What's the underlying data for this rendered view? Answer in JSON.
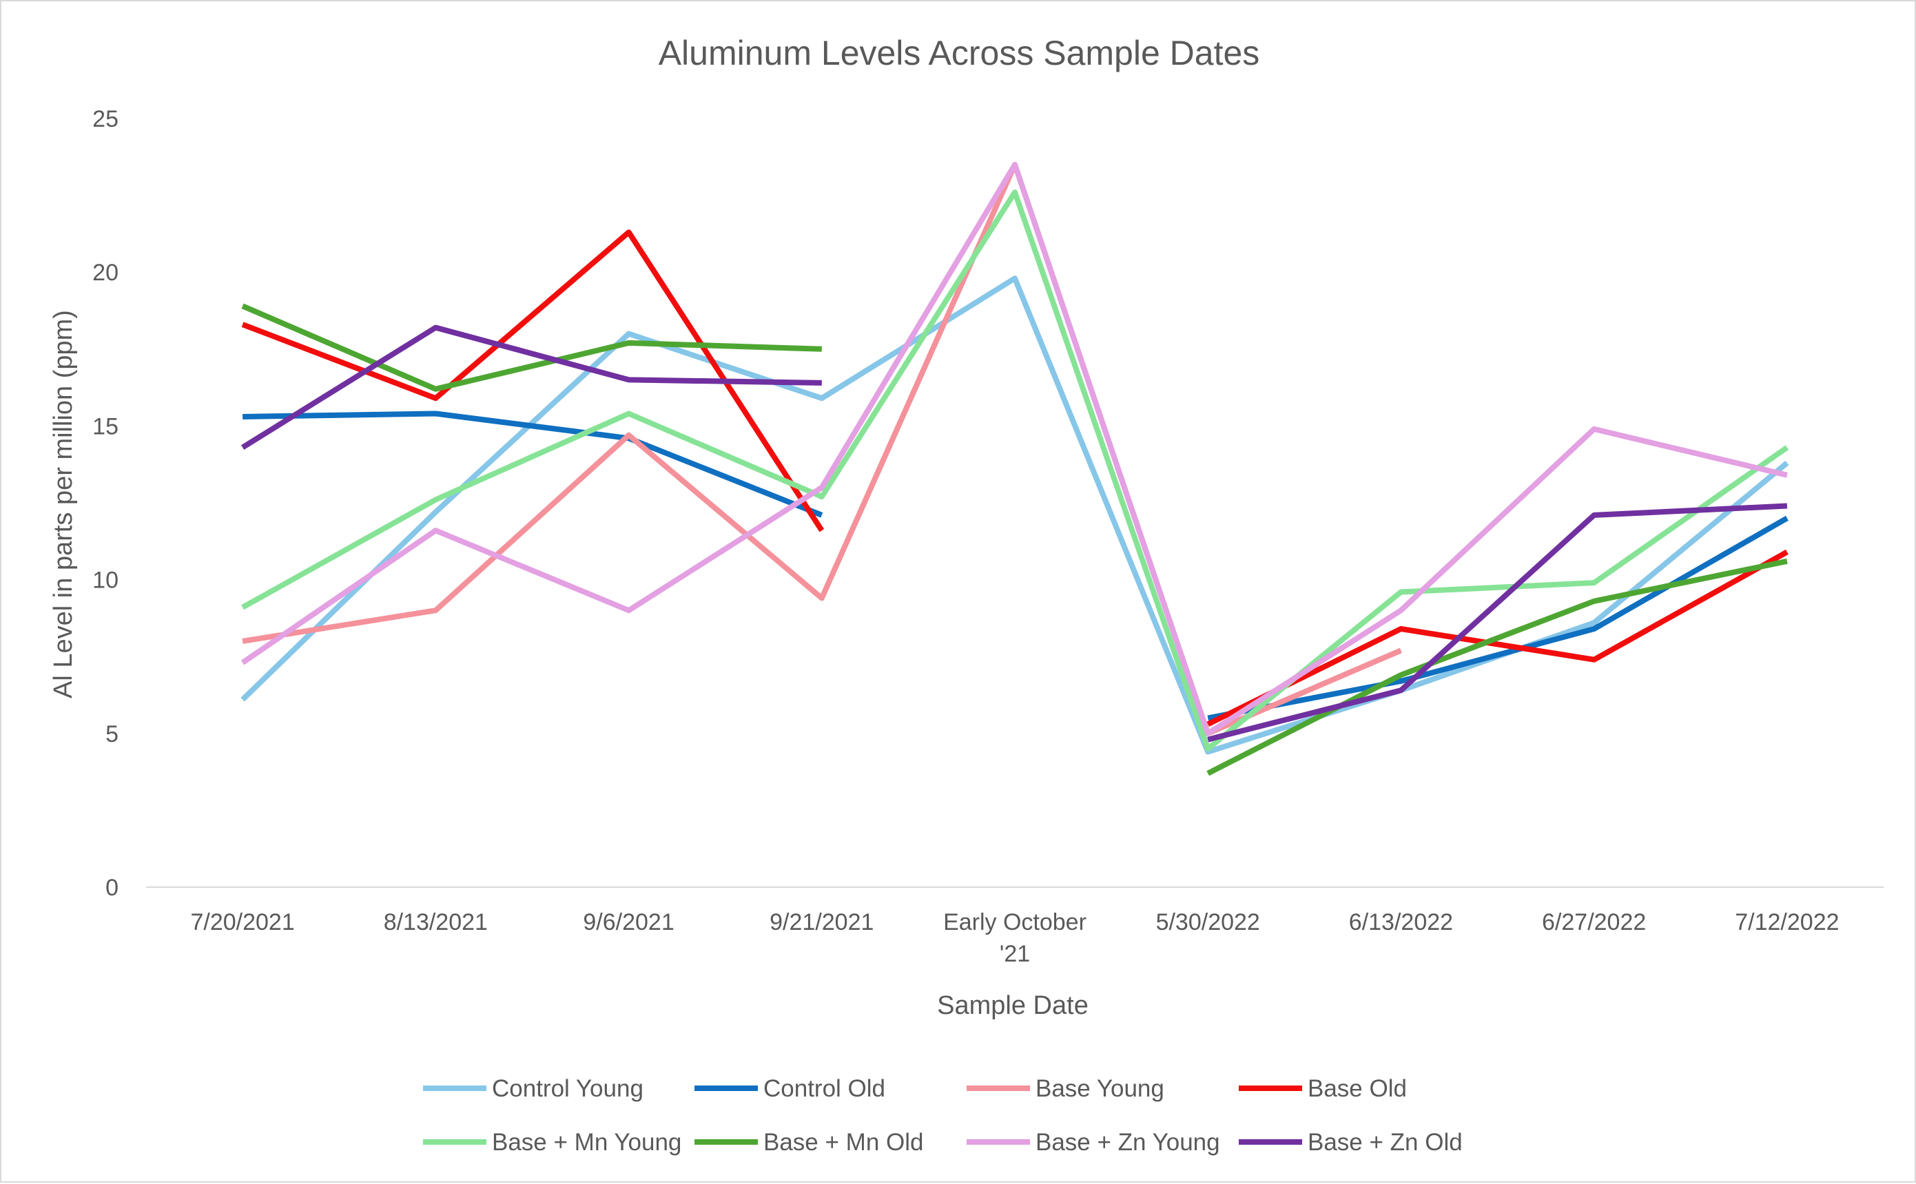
{
  "chart_data": {
    "type": "line",
    "title": "Aluminum Levels Across Sample Dates",
    "xlabel": "Sample Date",
    "ylabel": "Al Level in parts per million (ppm)",
    "ylim": [
      0,
      25
    ],
    "yticks": [
      0,
      5,
      10,
      15,
      20,
      25
    ],
    "categories": [
      [
        "7/20/2021"
      ],
      [
        "8/13/2021"
      ],
      [
        "9/6/2021"
      ],
      [
        "9/21/2021"
      ],
      [
        "Early October",
        "'21"
      ],
      [
        "5/30/2022"
      ],
      [
        "6/13/2022"
      ],
      [
        "6/27/2022"
      ],
      [
        "7/12/2022"
      ]
    ],
    "grid": {
      "horizontal": false,
      "vertical": false
    },
    "legend_position": "bottom",
    "series": [
      {
        "name": "Control Young",
        "color": "#86c6e8",
        "values": [
          6.1,
          12.2,
          18.0,
          15.9,
          19.8,
          4.4,
          6.4,
          8.6,
          13.8
        ]
      },
      {
        "name": "Control Old",
        "color": "#0f6fc0",
        "values": [
          15.3,
          15.4,
          14.6,
          12.1,
          null,
          5.5,
          6.7,
          8.4,
          12.0
        ]
      },
      {
        "name": "Base Young",
        "color": "#f4919a",
        "values": [
          8.0,
          9.0,
          14.7,
          9.4,
          23.5,
          5.0,
          7.7,
          null,
          null
        ]
      },
      {
        "name": "Base Old",
        "color": "#f20d0d",
        "values": [
          18.3,
          15.9,
          21.3,
          11.6,
          null,
          5.3,
          8.4,
          7.4,
          10.9
        ]
      },
      {
        "name": "Base + Mn Young",
        "color": "#86e396",
        "values": [
          9.1,
          12.6,
          15.4,
          12.7,
          22.6,
          4.5,
          9.6,
          9.9,
          14.3
        ]
      },
      {
        "name": "Base + Mn Old",
        "color": "#4ea632",
        "values": [
          18.9,
          16.2,
          17.7,
          17.5,
          null,
          3.7,
          6.9,
          9.3,
          10.6
        ]
      },
      {
        "name": "Base + Zn Young",
        "color": "#e3a0e2",
        "values": [
          7.3,
          11.6,
          9.0,
          13.0,
          23.5,
          5.0,
          9.0,
          14.9,
          13.4
        ]
      },
      {
        "name": "Base + Zn Old",
        "color": "#7030a0",
        "values": [
          14.3,
          18.2,
          16.5,
          16.4,
          null,
          4.8,
          6.4,
          12.1,
          12.4
        ]
      }
    ]
  }
}
